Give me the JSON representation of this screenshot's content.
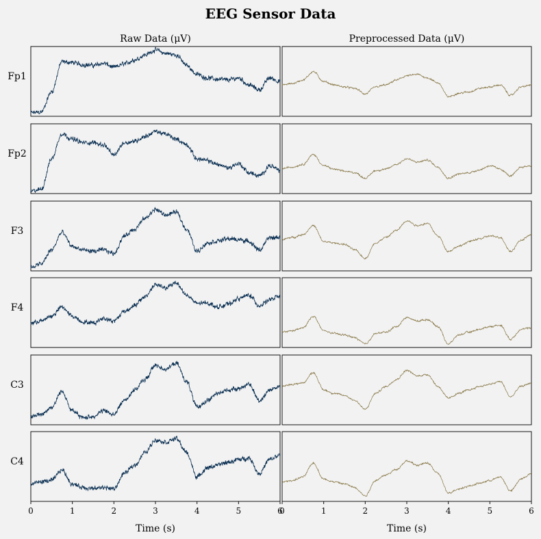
{
  "chart_data": {
    "type": "line",
    "title": "EEG Sensor Data",
    "columns": [
      {
        "title": "Raw Data (μV)",
        "color": "#0a2f52"
      },
      {
        "title": "Preprocessed Data (μV)",
        "color": "#857443"
      }
    ],
    "channels": [
      "Fp1",
      "Fp2",
      "F3",
      "F4",
      "C3",
      "C4"
    ],
    "xlabel": "Time (s)",
    "xlim": [
      0,
      6
    ],
    "xticks": [
      "0",
      "1",
      "2",
      "3",
      "4",
      "5",
      "6"
    ],
    "grid": false,
    "x": [
      0,
      0.25,
      0.5,
      0.75,
      1,
      1.25,
      1.5,
      1.75,
      2,
      2.25,
      2.5,
      2.75,
      3,
      3.25,
      3.5,
      3.75,
      4,
      4.25,
      4.5,
      4.75,
      5,
      5.25,
      5.5,
      5.75,
      6
    ],
    "raw": [
      [
        0.05,
        0.06,
        0.35,
        0.78,
        0.77,
        0.74,
        0.73,
        0.76,
        0.7,
        0.75,
        0.81,
        0.88,
        0.95,
        0.9,
        0.88,
        0.73,
        0.6,
        0.55,
        0.53,
        0.52,
        0.55,
        0.45,
        0.38,
        0.55,
        0.5
      ],
      [
        0.03,
        0.06,
        0.5,
        0.86,
        0.78,
        0.73,
        0.73,
        0.7,
        0.55,
        0.73,
        0.75,
        0.82,
        0.89,
        0.85,
        0.78,
        0.7,
        0.5,
        0.47,
        0.42,
        0.37,
        0.43,
        0.3,
        0.25,
        0.4,
        0.33
      ],
      [
        0.05,
        0.1,
        0.3,
        0.55,
        0.35,
        0.3,
        0.28,
        0.3,
        0.25,
        0.5,
        0.6,
        0.75,
        0.88,
        0.8,
        0.84,
        0.6,
        0.28,
        0.4,
        0.43,
        0.46,
        0.45,
        0.42,
        0.3,
        0.47,
        0.48
      ],
      [
        0.35,
        0.38,
        0.45,
        0.58,
        0.45,
        0.37,
        0.35,
        0.42,
        0.38,
        0.52,
        0.6,
        0.73,
        0.9,
        0.85,
        0.93,
        0.75,
        0.63,
        0.64,
        0.58,
        0.62,
        0.7,
        0.75,
        0.6,
        0.68,
        0.74
      ],
      [
        0.12,
        0.15,
        0.25,
        0.48,
        0.2,
        0.1,
        0.12,
        0.2,
        0.15,
        0.35,
        0.5,
        0.65,
        0.85,
        0.8,
        0.88,
        0.62,
        0.25,
        0.35,
        0.45,
        0.5,
        0.52,
        0.58,
        0.35,
        0.5,
        0.55
      ],
      [
        0.25,
        0.28,
        0.3,
        0.45,
        0.25,
        0.2,
        0.18,
        0.2,
        0.18,
        0.4,
        0.52,
        0.7,
        0.88,
        0.85,
        0.9,
        0.7,
        0.35,
        0.48,
        0.52,
        0.56,
        0.6,
        0.62,
        0.4,
        0.6,
        0.66
      ]
    ],
    "preprocessed": [
      [
        0.45,
        0.47,
        0.52,
        0.64,
        0.5,
        0.45,
        0.42,
        0.4,
        0.32,
        0.42,
        0.45,
        0.52,
        0.58,
        0.6,
        0.55,
        0.48,
        0.28,
        0.33,
        0.35,
        0.4,
        0.42,
        0.45,
        0.3,
        0.42,
        0.45
      ],
      [
        0.36,
        0.38,
        0.42,
        0.56,
        0.4,
        0.35,
        0.32,
        0.3,
        0.22,
        0.33,
        0.35,
        0.42,
        0.5,
        0.45,
        0.48,
        0.38,
        0.22,
        0.28,
        0.3,
        0.34,
        0.4,
        0.35,
        0.25,
        0.38,
        0.4
      ],
      [
        0.45,
        0.48,
        0.52,
        0.65,
        0.42,
        0.4,
        0.38,
        0.3,
        0.18,
        0.4,
        0.48,
        0.58,
        0.72,
        0.65,
        0.68,
        0.5,
        0.28,
        0.35,
        0.42,
        0.46,
        0.5,
        0.48,
        0.28,
        0.44,
        0.52
      ],
      [
        0.22,
        0.24,
        0.28,
        0.45,
        0.24,
        0.2,
        0.18,
        0.14,
        0.05,
        0.2,
        0.22,
        0.3,
        0.43,
        0.38,
        0.4,
        0.3,
        0.05,
        0.18,
        0.22,
        0.26,
        0.3,
        0.32,
        0.12,
        0.26,
        0.28
      ],
      [
        0.55,
        0.58,
        0.6,
        0.75,
        0.5,
        0.45,
        0.42,
        0.35,
        0.22,
        0.45,
        0.55,
        0.65,
        0.78,
        0.7,
        0.72,
        0.55,
        0.38,
        0.45,
        0.5,
        0.55,
        0.58,
        0.62,
        0.4,
        0.55,
        0.6
      ],
      [
        0.28,
        0.3,
        0.35,
        0.55,
        0.32,
        0.28,
        0.25,
        0.2,
        0.08,
        0.3,
        0.38,
        0.46,
        0.58,
        0.52,
        0.55,
        0.4,
        0.12,
        0.18,
        0.22,
        0.26,
        0.3,
        0.35,
        0.15,
        0.32,
        0.4
      ]
    ]
  }
}
